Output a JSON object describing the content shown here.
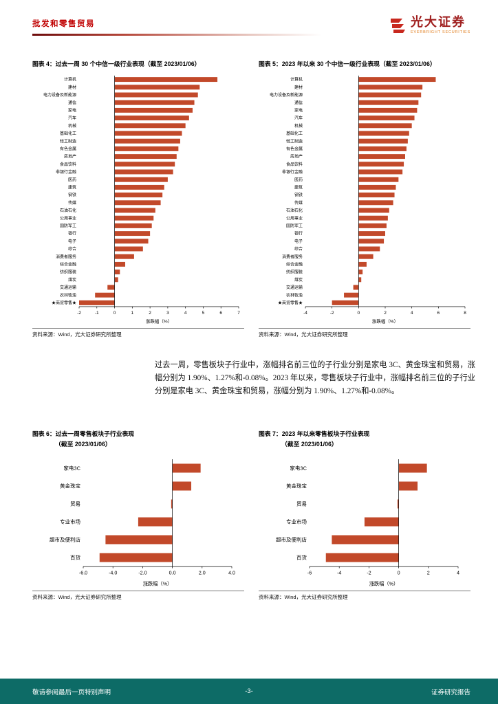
{
  "header": {
    "category": "批发和零售贸易",
    "brand_cn": "光大证券",
    "brand_en": "EVERBRIGHT SECURITIES"
  },
  "paragraph": "过去一周，零售板块子行业中，涨幅排名前三位的子行业分别是家电 3C、黄金珠宝和贸易，涨幅分别为 1.90%、1.27%和-0.08%。2023 年以来，零售板块子行业中，涨幅排名前三位的子行业分别是家电 3C、黄金珠宝和贸易，涨幅分别为 1.90%、1.27%和-0.08%。",
  "footer": {
    "left": "敬请参阅最后一页特别声明",
    "page": "-3-",
    "right": "证券研究报告"
  },
  "colors": {
    "bar": "#c2492a",
    "accent_red": "#c00000",
    "footer_teal": "#0d6b66",
    "brand_red": "#a02020",
    "brand_orange": "#e07b1a"
  },
  "chart_data": [
    {
      "id": "figure-4",
      "type": "bar",
      "orientation": "horizontal",
      "title": "图表 4：过去一周 30 个中信一级行业表现（截至 2023/01/06）",
      "categories": [
        "计算机",
        "建材",
        "电力设备及新能源",
        "通信",
        "家电",
        "汽车",
        "机械",
        "基础化工",
        "轻工制造",
        "有色金属",
        "房地产",
        "食品饮料",
        "非银行金融",
        "医药",
        "建筑",
        "钢铁",
        "传媒",
        "石油石化",
        "公用事业",
        "国防军工",
        "银行",
        "电子",
        "综合",
        "消费者服务",
        "综合金融",
        "纺织服装",
        "煤炭",
        "交通运输",
        "农林牧渔",
        "★商贸零售★"
      ],
      "values": [
        5.8,
        4.8,
        4.7,
        4.5,
        4.4,
        4.2,
        4.0,
        3.8,
        3.7,
        3.6,
        3.5,
        3.4,
        3.3,
        3.0,
        2.8,
        2.7,
        2.6,
        2.3,
        2.2,
        2.1,
        2.0,
        1.9,
        1.6,
        1.1,
        0.6,
        0.3,
        0.2,
        -0.4,
        -1.1,
        -2.0
      ],
      "xlabel": "涨跌幅（%）",
      "xticks": [
        "-2",
        "-1",
        "0",
        "1",
        "2",
        "3",
        "4",
        "5",
        "6",
        "7"
      ],
      "xlim": [
        -2,
        7
      ],
      "source": "资料来源：Wind，光大证券研究所整理"
    },
    {
      "id": "figure-5",
      "type": "bar",
      "orientation": "horizontal",
      "title": "图表 5：2023 年以来 30 个中信一级行业表现（截至 2023/01/06）",
      "categories": [
        "计算机",
        "建材",
        "电力设备及新能源",
        "通信",
        "家电",
        "汽车",
        "机械",
        "基础化工",
        "轻工制造",
        "有色金属",
        "房地产",
        "食品饮料",
        "非银行金融",
        "医药",
        "建筑",
        "钢铁",
        "传媒",
        "石油石化",
        "公用事业",
        "国防军工",
        "银行",
        "电子",
        "综合",
        "消费者服务",
        "综合金融",
        "纺织服装",
        "煤炭",
        "交通运输",
        "农林牧渔",
        "★商贸零售★"
      ],
      "values": [
        5.8,
        4.8,
        4.7,
        4.5,
        4.4,
        4.2,
        4.0,
        3.8,
        3.7,
        3.6,
        3.5,
        3.4,
        3.3,
        3.0,
        2.8,
        2.7,
        2.6,
        2.3,
        2.2,
        2.1,
        2.0,
        1.9,
        1.6,
        1.1,
        0.6,
        0.3,
        0.2,
        -0.4,
        -1.1,
        -2.0
      ],
      "xlabel": "涨跌幅（%）",
      "xticks": [
        "-4",
        "-2",
        "0",
        "2",
        "4",
        "6",
        "8"
      ],
      "xlim": [
        -4,
        8
      ],
      "source": "资料来源：Wind，光大证券研究所整理"
    },
    {
      "id": "figure-6",
      "type": "bar",
      "orientation": "horizontal",
      "title": "图表 6：过去一周零售板块子行业表现",
      "subtitle": "（截至 2023/01/06）",
      "categories": [
        "家电3C",
        "黄金珠宝",
        "贸易",
        "专业市场",
        "超市及便利店",
        "百货"
      ],
      "values": [
        1.9,
        1.27,
        -0.08,
        -2.3,
        -4.5,
        -4.9
      ],
      "xlabel": "涨跌幅（%）",
      "xticks": [
        "-6.0",
        "-4.0",
        "-2.0",
        "0.0",
        "2.0",
        "4.0"
      ],
      "xlim": [
        -6,
        4
      ],
      "source": "资料来源：Wind，光大证券研究所整理"
    },
    {
      "id": "figure-7",
      "type": "bar",
      "orientation": "horizontal",
      "title": "图表 7：2023 年以来零售板块子行业表现",
      "subtitle": "（截至 2023/01/06）",
      "categories": [
        "家电3C",
        "黄金珠宝",
        "贸易",
        "专业市场",
        "超市及便利店",
        "百货"
      ],
      "values": [
        1.9,
        1.27,
        -0.08,
        -2.3,
        -4.5,
        -4.9
      ],
      "xlabel": "涨跌幅（%）",
      "xticks": [
        "-6",
        "-4",
        "-2",
        "0",
        "2",
        "4"
      ],
      "xlim": [
        -6,
        4
      ],
      "source": "资料来源：Wind，光大证券研究所整理"
    }
  ]
}
